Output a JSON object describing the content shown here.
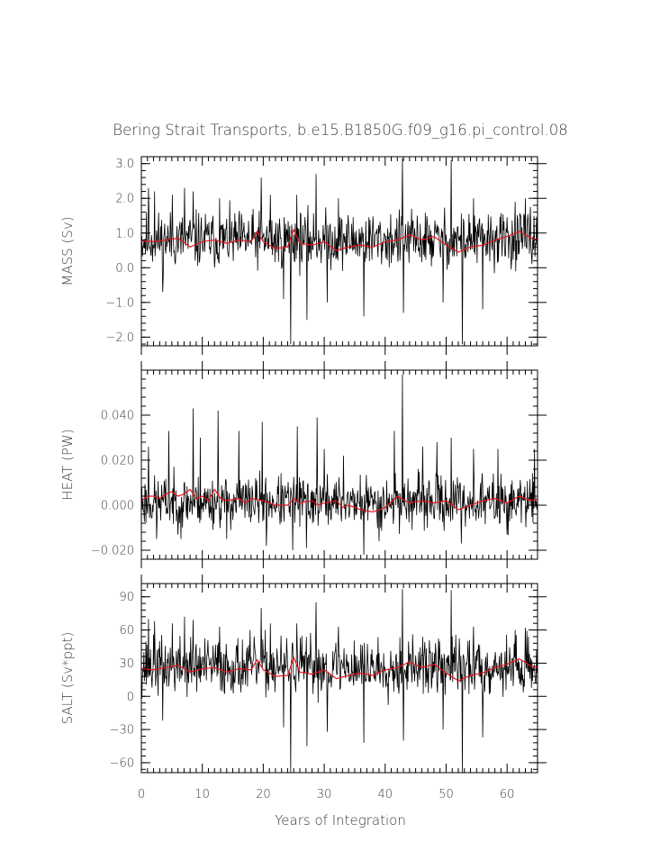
{
  "title": "Bering Strait Transports, b.e15.B1850G.f09_g16.pi_control.08",
  "chart_data": [
    {
      "type": "line",
      "ylabel": "MASS (Sv)",
      "ylim": [
        -2.25,
        3.2
      ],
      "yticks": [
        {
          "v": 3.0,
          "label": "3.0"
        },
        {
          "v": 2.0,
          "label": "2.0"
        },
        {
          "v": 1.0,
          "label": "1.0"
        },
        {
          "v": 0.0,
          "label": "0.0"
        },
        {
          "v": -1.0,
          "label": "−1.0"
        },
        {
          "v": -2.0,
          "label": "−2.0"
        }
      ],
      "yminor": 0.2,
      "base": 0.8,
      "spread": 0.5,
      "smooth": [
        [
          0,
          0.78
        ],
        [
          2,
          0.75
        ],
        [
          4,
          0.8
        ],
        [
          6,
          0.85
        ],
        [
          8,
          0.6
        ],
        [
          10,
          0.75
        ],
        [
          12,
          0.8
        ],
        [
          14,
          0.7
        ],
        [
          16,
          0.8
        ],
        [
          18,
          0.75
        ],
        [
          19,
          1.05
        ],
        [
          20,
          0.75
        ],
        [
          22,
          0.55
        ],
        [
          24,
          0.6
        ],
        [
          25,
          1.1
        ],
        [
          26,
          0.7
        ],
        [
          28,
          0.65
        ],
        [
          30,
          0.75
        ],
        [
          32,
          0.5
        ],
        [
          34,
          0.6
        ],
        [
          36,
          0.65
        ],
        [
          38,
          0.6
        ],
        [
          40,
          0.75
        ],
        [
          42,
          0.8
        ],
        [
          44,
          0.95
        ],
        [
          46,
          0.8
        ],
        [
          48,
          0.9
        ],
        [
          50,
          0.65
        ],
        [
          52,
          0.45
        ],
        [
          54,
          0.6
        ],
        [
          56,
          0.65
        ],
        [
          58,
          0.8
        ],
        [
          60,
          0.9
        ],
        [
          62,
          1.05
        ],
        [
          64,
          0.85
        ],
        [
          65,
          0.8
        ]
      ],
      "spikes": [
        [
          1.2,
          2.3
        ],
        [
          2.2,
          2.2
        ],
        [
          3.5,
          -0.7
        ],
        [
          5.1,
          2.1
        ],
        [
          7.1,
          2.3
        ],
        [
          8.5,
          2.2
        ],
        [
          12.8,
          2.0
        ],
        [
          19.7,
          2.6
        ],
        [
          21.2,
          2.1
        ],
        [
          23.3,
          -0.9
        ],
        [
          24.5,
          -2.2
        ],
        [
          25.5,
          2.1
        ],
        [
          28.7,
          2.7
        ],
        [
          27.2,
          -1.5
        ],
        [
          30.5,
          -1.0
        ],
        [
          32.3,
          2.0
        ],
        [
          36.5,
          -1.4
        ],
        [
          42.8,
          3.15
        ],
        [
          43,
          -1.3
        ],
        [
          50.8,
          3.1
        ],
        [
          52.7,
          -2.2
        ],
        [
          49.5,
          -1.0
        ],
        [
          54.5,
          2.0
        ],
        [
          56,
          -1.2
        ],
        [
          61.3,
          1.9
        ],
        [
          63,
          2.0
        ]
      ],
      "seed": 11
    },
    {
      "type": "line",
      "ylabel": "HEAT (PW)",
      "ylim": [
        -0.024,
        0.06
      ],
      "yticks": [
        {
          "v": 0.04,
          "label": "0.040"
        },
        {
          "v": 0.02,
          "label": "0.020"
        },
        {
          "v": 0.0,
          "label": "0.000"
        },
        {
          "v": -0.02,
          "label": "−0.020"
        }
      ],
      "yminor": 0.004,
      "base": 0.0015,
      "spread": 0.007,
      "smooth": [
        [
          0,
          0.002
        ],
        [
          1,
          0.004
        ],
        [
          2,
          0.004
        ],
        [
          3,
          0.003
        ],
        [
          4,
          0.005
        ],
        [
          5,
          0.006
        ],
        [
          6,
          0.004
        ],
        [
          7,
          0.005
        ],
        [
          8,
          0.007
        ],
        [
          9,
          0.003
        ],
        [
          10,
          0.004
        ],
        [
          11,
          0.002
        ],
        [
          12,
          0.007
        ],
        [
          13,
          0.003
        ],
        [
          14,
          0.002
        ],
        [
          16,
          0.003
        ],
        [
          17,
          0.001
        ],
        [
          18,
          0.003
        ],
        [
          20,
          0.002
        ],
        [
          22,
          0.0
        ],
        [
          24,
          0.0
        ],
        [
          25,
          0.003
        ],
        [
          26,
          0.001
        ],
        [
          28,
          0.002
        ],
        [
          29,
          0.0
        ],
        [
          30,
          0.001
        ],
        [
          32,
          0.002
        ],
        [
          33,
          -0.001
        ],
        [
          34,
          0.0
        ],
        [
          36,
          -0.002
        ],
        [
          38,
          -0.003
        ],
        [
          40,
          -0.001
        ],
        [
          42,
          0.004
        ],
        [
          44,
          0.001
        ],
        [
          46,
          0.002
        ],
        [
          48,
          0.001
        ],
        [
          50,
          0.002
        ],
        [
          52,
          -0.002
        ],
        [
          54,
          0.0
        ],
        [
          56,
          0.002
        ],
        [
          58,
          0.003
        ],
        [
          60,
          0.001
        ],
        [
          62,
          0.004
        ],
        [
          64,
          0.002
        ],
        [
          65,
          0.003
        ]
      ],
      "spikes": [
        [
          1.2,
          0.026
        ],
        [
          4.5,
          0.033
        ],
        [
          6.5,
          0.038
        ],
        [
          8.5,
          0.043
        ],
        [
          9.7,
          0.03
        ],
        [
          12.6,
          0.042
        ],
        [
          16,
          0.033
        ],
        [
          19.8,
          0.037
        ],
        [
          24.8,
          -0.02
        ],
        [
          25.6,
          0.035
        ],
        [
          27.1,
          -0.019
        ],
        [
          28.8,
          0.039
        ],
        [
          30,
          0.025
        ],
        [
          33.2,
          0.022
        ],
        [
          36.5,
          -0.022
        ],
        [
          42.8,
          0.058
        ],
        [
          41.5,
          0.033
        ],
        [
          46.2,
          0.026
        ],
        [
          48.5,
          0.028
        ],
        [
          50.8,
          0.03
        ],
        [
          54.5,
          0.025
        ],
        [
          58.5,
          0.025
        ],
        [
          64.5,
          0.025
        ],
        [
          2.5,
          -0.015
        ],
        [
          6.5,
          -0.015
        ],
        [
          14,
          -0.015
        ],
        [
          20.5,
          -0.018
        ],
        [
          39,
          -0.016
        ],
        [
          52.5,
          -0.017
        ],
        [
          60,
          -0.013
        ]
      ],
      "seed": 23
    },
    {
      "type": "line",
      "ylabel": "SALT (Sv*ppt)",
      "xlabel": "Years of Integration",
      "xlim": [
        0,
        65
      ],
      "xticks": [
        0,
        10,
        20,
        30,
        40,
        50,
        60
      ],
      "ylim": [
        -69,
        102
      ],
      "yticks": [
        {
          "v": 90,
          "label": "90"
        },
        {
          "v": 60,
          "label": "60"
        },
        {
          "v": 30,
          "label": "30"
        },
        {
          "v": 0,
          "label": "0"
        },
        {
          "v": -30,
          "label": "−30"
        },
        {
          "v": -60,
          "label": "−60"
        }
      ],
      "yminor": 6,
      "base": 27,
      "spread": 16,
      "smooth": [
        [
          0,
          25
        ],
        [
          2,
          24
        ],
        [
          4,
          26
        ],
        [
          6,
          28
        ],
        [
          8,
          22
        ],
        [
          10,
          25
        ],
        [
          12,
          26
        ],
        [
          14,
          22
        ],
        [
          16,
          25
        ],
        [
          18,
          24
        ],
        [
          19,
          33
        ],
        [
          20,
          24
        ],
        [
          22,
          18
        ],
        [
          24,
          19
        ],
        [
          25,
          35
        ],
        [
          26,
          22
        ],
        [
          28,
          20
        ],
        [
          30,
          24
        ],
        [
          32,
          16
        ],
        [
          34,
          19
        ],
        [
          36,
          21
        ],
        [
          38,
          19
        ],
        [
          40,
          24
        ],
        [
          42,
          26
        ],
        [
          44,
          31
        ],
        [
          46,
          26
        ],
        [
          48,
          29
        ],
        [
          50,
          21
        ],
        [
          52,
          14
        ],
        [
          54,
          19
        ],
        [
          56,
          21
        ],
        [
          58,
          26
        ],
        [
          60,
          29
        ],
        [
          62,
          34
        ],
        [
          64,
          27
        ],
        [
          65,
          26
        ]
      ],
      "spikes": [
        [
          1.2,
          70
        ],
        [
          2.2,
          68
        ],
        [
          3.5,
          -22
        ],
        [
          5.1,
          66
        ],
        [
          7.1,
          72
        ],
        [
          8.5,
          69
        ],
        [
          12.8,
          63
        ],
        [
          19.7,
          80
        ],
        [
          21.2,
          66
        ],
        [
          23.3,
          -28
        ],
        [
          24.5,
          -69
        ],
        [
          25.5,
          66
        ],
        [
          28.7,
          85
        ],
        [
          27.2,
          -45
        ],
        [
          30.5,
          -32
        ],
        [
          32.3,
          63
        ],
        [
          36.5,
          -42
        ],
        [
          42.8,
          97
        ],
        [
          43,
          -40
        ],
        [
          50.8,
          96
        ],
        [
          52.7,
          -69
        ],
        [
          49.5,
          -30
        ],
        [
          54.5,
          63
        ],
        [
          56,
          -37
        ],
        [
          61.3,
          60
        ],
        [
          63,
          62
        ]
      ],
      "seed": 37
    }
  ]
}
